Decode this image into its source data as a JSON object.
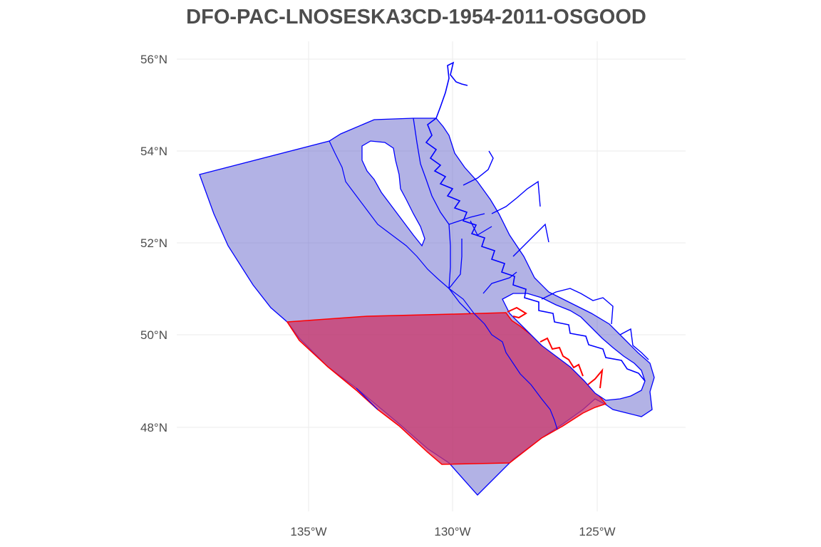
{
  "title": "DFO-PAC-LNOSESKA3CD-1954-2011-OSGOOD",
  "axes": {
    "lat_ticks": [
      "56°N",
      "54°N",
      "52°N",
      "50°N",
      "48°N"
    ],
    "lon_ticks": [
      "135°W",
      "130°W",
      "125°W"
    ]
  },
  "layers": [
    {
      "name": "management-areas",
      "fill": "#6666cc",
      "stroke": "#0000ff"
    },
    {
      "name": "selected-stock-area",
      "fill": "#cc3366",
      "stroke": "#ff0000"
    }
  ]
}
